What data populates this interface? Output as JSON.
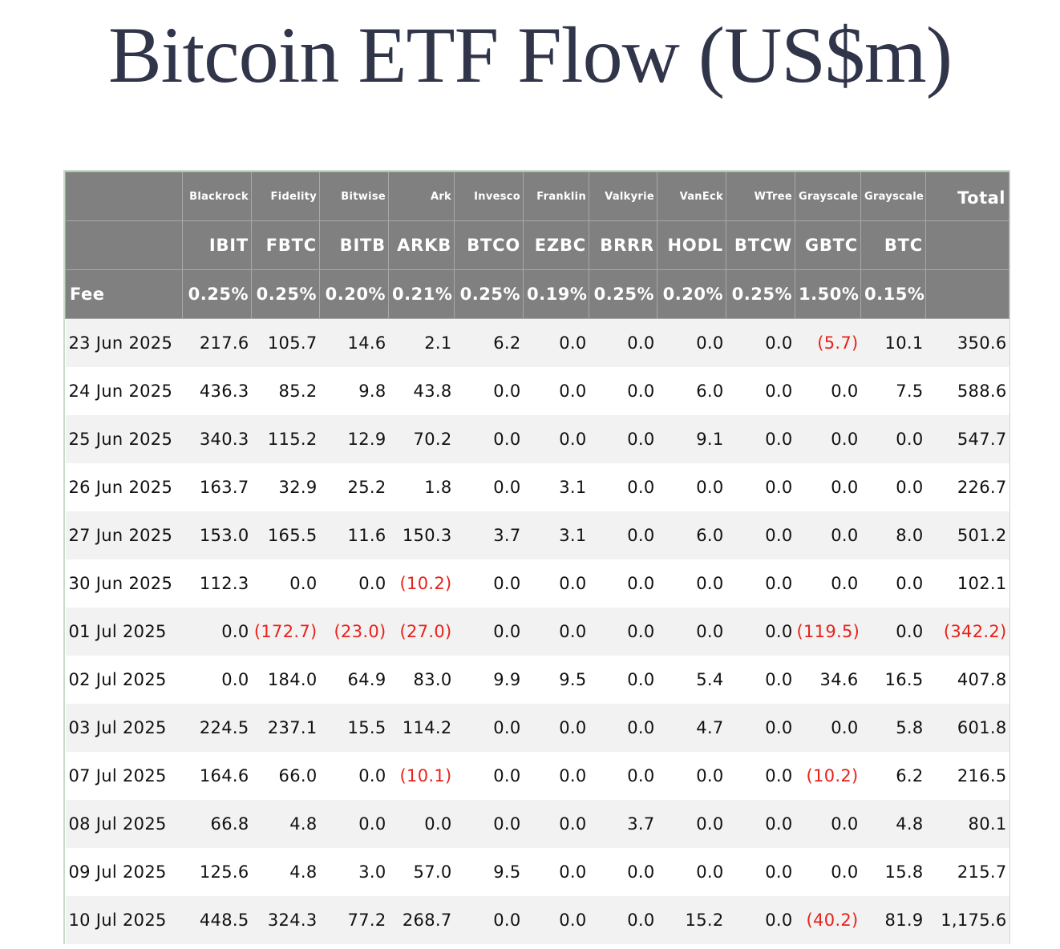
{
  "chart_data": {
    "type": "table",
    "title": "Bitcoin ETF Flow (US$m)",
    "fee_label": "Fee",
    "total_label": "Total",
    "columns": [
      {
        "issuer": "Blackrock",
        "ticker": "IBIT",
        "fee": "0.25%"
      },
      {
        "issuer": "Fidelity",
        "ticker": "FBTC",
        "fee": "0.25%"
      },
      {
        "issuer": "Bitwise",
        "ticker": "BITB",
        "fee": "0.20%"
      },
      {
        "issuer": "Ark",
        "ticker": "ARKB",
        "fee": "0.21%"
      },
      {
        "issuer": "Invesco",
        "ticker": "BTCO",
        "fee": "0.25%"
      },
      {
        "issuer": "Franklin",
        "ticker": "EZBC",
        "fee": "0.19%"
      },
      {
        "issuer": "Valkyrie",
        "ticker": "BRRR",
        "fee": "0.25%"
      },
      {
        "issuer": "VanEck",
        "ticker": "HODL",
        "fee": "0.20%"
      },
      {
        "issuer": "WTree",
        "ticker": "BTCW",
        "fee": "0.25%"
      },
      {
        "issuer": "Grayscale",
        "ticker": "GBTC",
        "fee": "1.50%"
      },
      {
        "issuer": "Grayscale",
        "ticker": "BTC",
        "fee": "0.15%"
      }
    ],
    "rows": [
      {
        "date": "23 Jun 2025",
        "values": [
          "217.6",
          "105.7",
          "14.6",
          "2.1",
          "6.2",
          "0.0",
          "0.0",
          "0.0",
          "0.0",
          "(5.7)",
          "10.1"
        ],
        "total": "350.6"
      },
      {
        "date": "24 Jun 2025",
        "values": [
          "436.3",
          "85.2",
          "9.8",
          "43.8",
          "0.0",
          "0.0",
          "0.0",
          "6.0",
          "0.0",
          "0.0",
          "7.5"
        ],
        "total": "588.6"
      },
      {
        "date": "25 Jun 2025",
        "values": [
          "340.3",
          "115.2",
          "12.9",
          "70.2",
          "0.0",
          "0.0",
          "0.0",
          "9.1",
          "0.0",
          "0.0",
          "0.0"
        ],
        "total": "547.7"
      },
      {
        "date": "26 Jun 2025",
        "values": [
          "163.7",
          "32.9",
          "25.2",
          "1.8",
          "0.0",
          "3.1",
          "0.0",
          "0.0",
          "0.0",
          "0.0",
          "0.0"
        ],
        "total": "226.7"
      },
      {
        "date": "27 Jun 2025",
        "values": [
          "153.0",
          "165.5",
          "11.6",
          "150.3",
          "3.7",
          "3.1",
          "0.0",
          "6.0",
          "0.0",
          "0.0",
          "8.0"
        ],
        "total": "501.2"
      },
      {
        "date": "30 Jun 2025",
        "values": [
          "112.3",
          "0.0",
          "0.0",
          "(10.2)",
          "0.0",
          "0.0",
          "0.0",
          "0.0",
          "0.0",
          "0.0",
          "0.0"
        ],
        "total": "102.1"
      },
      {
        "date": "01 Jul 2025",
        "values": [
          "0.0",
          "(172.7)",
          "(23.0)",
          "(27.0)",
          "0.0",
          "0.0",
          "0.0",
          "0.0",
          "0.0",
          "(119.5)",
          "0.0"
        ],
        "total": "(342.2)"
      },
      {
        "date": "02 Jul 2025",
        "values": [
          "0.0",
          "184.0",
          "64.9",
          "83.0",
          "9.9",
          "9.5",
          "0.0",
          "5.4",
          "0.0",
          "34.6",
          "16.5"
        ],
        "total": "407.8"
      },
      {
        "date": "03 Jul 2025",
        "values": [
          "224.5",
          "237.1",
          "15.5",
          "114.2",
          "0.0",
          "0.0",
          "0.0",
          "4.7",
          "0.0",
          "0.0",
          "5.8"
        ],
        "total": "601.8"
      },
      {
        "date": "07 Jul 2025",
        "values": [
          "164.6",
          "66.0",
          "0.0",
          "(10.1)",
          "0.0",
          "0.0",
          "0.0",
          "0.0",
          "0.0",
          "(10.2)",
          "6.2"
        ],
        "total": "216.5"
      },
      {
        "date": "08 Jul 2025",
        "values": [
          "66.8",
          "4.8",
          "0.0",
          "0.0",
          "0.0",
          "0.0",
          "3.7",
          "0.0",
          "0.0",
          "0.0",
          "4.8"
        ],
        "total": "80.1"
      },
      {
        "date": "09 Jul 2025",
        "values": [
          "125.6",
          "4.8",
          "3.0",
          "57.0",
          "9.5",
          "0.0",
          "0.0",
          "0.0",
          "0.0",
          "0.0",
          "15.8"
        ],
        "total": "215.7"
      },
      {
        "date": "10 Jul 2025",
        "values": [
          "448.5",
          "324.3",
          "77.2",
          "268.7",
          "0.0",
          "0.0",
          "0.0",
          "15.2",
          "0.0",
          "(40.2)",
          "81.9"
        ],
        "total": "1,175.6"
      }
    ],
    "colors": {
      "header_bg": "#808080",
      "negative": "#e8221b",
      "stripe": "#f2f2f2",
      "title": "#30354a"
    }
  }
}
